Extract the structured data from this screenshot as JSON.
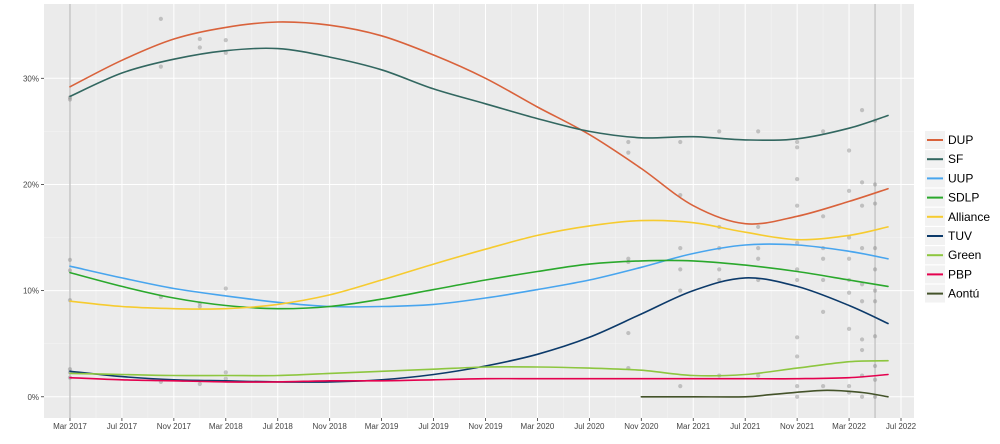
{
  "chart_data": {
    "type": "line",
    "title": "",
    "xlabel": "",
    "ylabel": "",
    "x_ticks": [
      "Mar 2017",
      "Jul 2017",
      "Nov 2017",
      "Mar 2018",
      "Jul 2018",
      "Nov 2018",
      "Mar 2019",
      "Jul 2019",
      "Nov 2019",
      "Mar 2020",
      "Jul 2020",
      "Nov 2020",
      "Mar 2021",
      "Jul 2021",
      "Nov 2021",
      "Mar 2022",
      "Jul 2022"
    ],
    "y_ticks": [
      "0%",
      "10%",
      "20%",
      "30%"
    ],
    "ylim": [
      -2,
      37
    ],
    "xlim": [
      "Jan 2017",
      "Aug 2022"
    ],
    "grid": true,
    "legend_position": "right",
    "election_markers": [
      "Mar 2017",
      "May 2022"
    ],
    "series": [
      {
        "name": "DUP",
        "color": "#d9623b",
        "points": [
          [
            "Mar 2017",
            29.2
          ],
          [
            "Jul 2017",
            31.7
          ],
          [
            "Nov 2017",
            33.7
          ],
          [
            "Mar 2018",
            34.8
          ],
          [
            "Jul 2018",
            35.3
          ],
          [
            "Nov 2018",
            35.0
          ],
          [
            "Mar 2019",
            34.0
          ],
          [
            "Jul 2019",
            32.2
          ],
          [
            "Nov 2019",
            30.0
          ],
          [
            "Mar 2020",
            27.3
          ],
          [
            "Jul 2020",
            24.7
          ],
          [
            "Nov 2020",
            21.5
          ],
          [
            "Mar 2021",
            18.0
          ],
          [
            "Jul 2021",
            16.3
          ],
          [
            "Nov 2021",
            17.0
          ],
          [
            "Mar 2022",
            18.4
          ],
          [
            "Jun 2022",
            19.6
          ]
        ]
      },
      {
        "name": "SF",
        "color": "#326760",
        "points": [
          [
            "Mar 2017",
            28.3
          ],
          [
            "Jul 2017",
            30.5
          ],
          [
            "Nov 2017",
            31.8
          ],
          [
            "Mar 2018",
            32.6
          ],
          [
            "Jul 2018",
            32.8
          ],
          [
            "Nov 2018",
            32.0
          ],
          [
            "Mar 2019",
            30.8
          ],
          [
            "Jul 2019",
            29.0
          ],
          [
            "Nov 2019",
            27.6
          ],
          [
            "Mar 2020",
            26.2
          ],
          [
            "Jul 2020",
            25.0
          ],
          [
            "Nov 2020",
            24.4
          ],
          [
            "Mar 2021",
            24.5
          ],
          [
            "Jul 2021",
            24.2
          ],
          [
            "Nov 2021",
            24.3
          ],
          [
            "Mar 2022",
            25.3
          ],
          [
            "Jun 2022",
            26.5
          ]
        ]
      },
      {
        "name": "UUP",
        "color": "#48a5ee",
        "points": [
          [
            "Mar 2017",
            12.3
          ],
          [
            "Jul 2017",
            11.2
          ],
          [
            "Nov 2017",
            10.2
          ],
          [
            "Mar 2018",
            9.5
          ],
          [
            "Jul 2018",
            8.9
          ],
          [
            "Nov 2018",
            8.5
          ],
          [
            "Mar 2019",
            8.5
          ],
          [
            "Jul 2019",
            8.7
          ],
          [
            "Nov 2019",
            9.3
          ],
          [
            "Mar 2020",
            10.1
          ],
          [
            "Jul 2020",
            11.0
          ],
          [
            "Nov 2020",
            12.2
          ],
          [
            "Mar 2021",
            13.5
          ],
          [
            "Jul 2021",
            14.3
          ],
          [
            "Nov 2021",
            14.3
          ],
          [
            "Mar 2022",
            13.7
          ],
          [
            "Jun 2022",
            13.0
          ]
        ]
      },
      {
        "name": "SDLP",
        "color": "#2aa82c",
        "points": [
          [
            "Mar 2017",
            11.7
          ],
          [
            "Jul 2017",
            10.4
          ],
          [
            "Nov 2017",
            9.3
          ],
          [
            "Mar 2018",
            8.6
          ],
          [
            "Jul 2018",
            8.3
          ],
          [
            "Nov 2018",
            8.5
          ],
          [
            "Mar 2019",
            9.2
          ],
          [
            "Jul 2019",
            10.1
          ],
          [
            "Nov 2019",
            11.0
          ],
          [
            "Mar 2020",
            11.8
          ],
          [
            "Jul 2020",
            12.5
          ],
          [
            "Nov 2020",
            12.8
          ],
          [
            "Mar 2021",
            12.8
          ],
          [
            "Jul 2021",
            12.4
          ],
          [
            "Nov 2021",
            11.8
          ],
          [
            "Mar 2022",
            11.0
          ],
          [
            "Jun 2022",
            10.4
          ]
        ]
      },
      {
        "name": "Alliance",
        "color": "#f6cb2f",
        "points": [
          [
            "Mar 2017",
            9.0
          ],
          [
            "Jul 2017",
            8.5
          ],
          [
            "Nov 2017",
            8.3
          ],
          [
            "Mar 2018",
            8.3
          ],
          [
            "Jul 2018",
            8.7
          ],
          [
            "Nov 2018",
            9.6
          ],
          [
            "Mar 2019",
            11.0
          ],
          [
            "Jul 2019",
            12.5
          ],
          [
            "Nov 2019",
            13.9
          ],
          [
            "Mar 2020",
            15.2
          ],
          [
            "Jul 2020",
            16.1
          ],
          [
            "Nov 2020",
            16.6
          ],
          [
            "Mar 2021",
            16.4
          ],
          [
            "Jul 2021",
            15.5
          ],
          [
            "Nov 2021",
            14.8
          ],
          [
            "Mar 2022",
            15.2
          ],
          [
            "Jun 2022",
            16.0
          ]
        ]
      },
      {
        "name": "TUV",
        "color": "#0c3a6a",
        "points": [
          [
            "Mar 2017",
            2.4
          ],
          [
            "Jul 2017",
            1.9
          ],
          [
            "Nov 2017",
            1.6
          ],
          [
            "Mar 2018",
            1.5
          ],
          [
            "Jul 2018",
            1.4
          ],
          [
            "Nov 2018",
            1.4
          ],
          [
            "Mar 2019",
            1.6
          ],
          [
            "Jul 2019",
            2.1
          ],
          [
            "Nov 2019",
            2.9
          ],
          [
            "Mar 2020",
            4.0
          ],
          [
            "Jul 2020",
            5.6
          ],
          [
            "Nov 2020",
            7.8
          ],
          [
            "Mar 2021",
            10.0
          ],
          [
            "Jul 2021",
            11.2
          ],
          [
            "Nov 2021",
            10.4
          ],
          [
            "Mar 2022",
            8.6
          ],
          [
            "Jun 2022",
            6.9
          ]
        ]
      },
      {
        "name": "Green",
        "color": "#8dc63f",
        "points": [
          [
            "Mar 2017",
            2.2
          ],
          [
            "Jul 2017",
            2.1
          ],
          [
            "Nov 2017",
            2.0
          ],
          [
            "Mar 2018",
            2.0
          ],
          [
            "Jul 2018",
            2.0
          ],
          [
            "Nov 2018",
            2.2
          ],
          [
            "Mar 2019",
            2.4
          ],
          [
            "Jul 2019",
            2.6
          ],
          [
            "Nov 2019",
            2.8
          ],
          [
            "Mar 2020",
            2.8
          ],
          [
            "Jul 2020",
            2.7
          ],
          [
            "Nov 2020",
            2.5
          ],
          [
            "Mar 2021",
            2.0
          ],
          [
            "Jul 2021",
            2.1
          ],
          [
            "Nov 2021",
            2.7
          ],
          [
            "Mar 2022",
            3.3
          ],
          [
            "Jun 2022",
            3.4
          ]
        ]
      },
      {
        "name": "PBP",
        "color": "#e4014e",
        "points": [
          [
            "Mar 2017",
            1.8
          ],
          [
            "Jul 2017",
            1.6
          ],
          [
            "Nov 2017",
            1.5
          ],
          [
            "Mar 2018",
            1.4
          ],
          [
            "Jul 2018",
            1.4
          ],
          [
            "Nov 2018",
            1.5
          ],
          [
            "Mar 2019",
            1.5
          ],
          [
            "Jul 2019",
            1.6
          ],
          [
            "Nov 2019",
            1.7
          ],
          [
            "Mar 2020",
            1.7
          ],
          [
            "Jul 2020",
            1.7
          ],
          [
            "Nov 2020",
            1.7
          ],
          [
            "Mar 2021",
            1.7
          ],
          [
            "Jul 2021",
            1.7
          ],
          [
            "Nov 2021",
            1.7
          ],
          [
            "Mar 2022",
            1.8
          ],
          [
            "Jun 2022",
            2.1
          ]
        ]
      },
      {
        "name": "Aontú",
        "color": "#44532a",
        "points": [
          [
            "Nov 2020",
            0.0
          ],
          [
            "Mar 2021",
            0.0
          ],
          [
            "Jul 2021",
            0.0
          ],
          [
            "Sep 2021",
            0.2
          ],
          [
            "Jan 2022",
            0.6
          ],
          [
            "Apr 2022",
            0.4
          ],
          [
            "Jun 2022",
            0.0
          ]
        ]
      }
    ],
    "poll_points": [
      [
        "Mar 2017",
        28
      ],
      [
        "Mar 2017",
        28.2
      ],
      [
        "Mar 2017",
        12.9
      ],
      [
        "Mar 2017",
        11.9
      ],
      [
        "Mar 2017",
        9.1
      ],
      [
        "Mar 2017",
        2.6
      ],
      [
        "Mar 2017",
        2.3
      ],
      [
        "Mar 2017",
        1.8
      ],
      [
        "Oct 2017",
        35.6
      ],
      [
        "Oct 2017",
        31.1
      ],
      [
        "Oct 2017",
        9.4
      ],
      [
        "Oct 2017",
        1.4
      ],
      [
        "Jan 2018",
        33.7
      ],
      [
        "Jan 2018",
        32.9
      ],
      [
        "Jan 2018",
        8.8
      ],
      [
        "Jan 2018",
        8.5
      ],
      [
        "Jan 2018",
        1.2
      ],
      [
        "Mar 2018",
        33.6
      ],
      [
        "Mar 2018",
        32.4
      ],
      [
        "Mar 2018",
        10.2
      ],
      [
        "Mar 2018",
        2.3
      ],
      [
        "Mar 2018",
        1.7
      ],
      [
        "Oct 2020",
        24.0
      ],
      [
        "Oct 2020",
        23.0
      ],
      [
        "Oct 2020",
        13.0
      ],
      [
        "Oct 2020",
        12.7
      ],
      [
        "Oct 2020",
        6.0
      ],
      [
        "Oct 2020",
        2.7
      ],
      [
        "Feb 2021",
        24.0
      ],
      [
        "Feb 2021",
        19.0
      ],
      [
        "Feb 2021",
        14.0
      ],
      [
        "Feb 2021",
        12.0
      ],
      [
        "Feb 2021",
        10.0
      ],
      [
        "Feb 2021",
        1.0
      ],
      [
        "May 2021",
        25.0
      ],
      [
        "May 2021",
        16.0
      ],
      [
        "May 2021",
        14.0
      ],
      [
        "May 2021",
        12.0
      ],
      [
        "May 2021",
        11.0
      ],
      [
        "May 2021",
        2.0
      ],
      [
        "Aug 2021",
        25.0
      ],
      [
        "Aug 2021",
        16.0
      ],
      [
        "Aug 2021",
        14.0
      ],
      [
        "Aug 2021",
        13.0
      ],
      [
        "Aug 2021",
        11.0
      ],
      [
        "Aug 2021",
        2.0
      ],
      [
        "Nov 2021",
        24.0
      ],
      [
        "Nov 2021",
        23.5
      ],
      [
        "Nov 2021",
        20.5
      ],
      [
        "Nov 2021",
        18.0
      ],
      [
        "Nov 2021",
        14.5
      ],
      [
        "Nov 2021",
        12.0
      ],
      [
        "Nov 2021",
        11.0
      ],
      [
        "Nov 2021",
        5.6
      ],
      [
        "Nov 2021",
        3.8
      ],
      [
        "Nov 2021",
        1.0
      ],
      [
        "Nov 2021",
        0.0
      ],
      [
        "Jan 2022",
        25.0
      ],
      [
        "Jan 2022",
        17.0
      ],
      [
        "Jan 2022",
        14.0
      ],
      [
        "Jan 2022",
        13.0
      ],
      [
        "Jan 2022",
        11.0
      ],
      [
        "Jan 2022",
        8.0
      ],
      [
        "Jan 2022",
        1.0
      ],
      [
        "Mar 2022",
        23.2
      ],
      [
        "Mar 2022",
        19.4
      ],
      [
        "Mar 2022",
        15.0
      ],
      [
        "Mar 2022",
        13.0
      ],
      [
        "Mar 2022",
        11.0
      ],
      [
        "Mar 2022",
        9.8
      ],
      [
        "Mar 2022",
        6.4
      ],
      [
        "Mar 2022",
        1.0
      ],
      [
        "Mar 2022",
        0.4
      ],
      [
        "Apr 2022",
        27.0
      ],
      [
        "Apr 2022",
        20.2
      ],
      [
        "Apr 2022",
        18.0
      ],
      [
        "Apr 2022",
        14.0
      ],
      [
        "Apr 2022",
        10.6
      ],
      [
        "Apr 2022",
        9.0
      ],
      [
        "Apr 2022",
        5.4
      ],
      [
        "Apr 2022",
        4.4
      ],
      [
        "Apr 2022",
        2.0
      ],
      [
        "Apr 2022",
        0.0
      ],
      [
        "May 2022",
        26.0
      ],
      [
        "May 2022",
        20.0
      ],
      [
        "May 2022",
        18.2
      ],
      [
        "May 2022",
        14.0
      ],
      [
        "May 2022",
        12.0
      ],
      [
        "May 2022",
        10.0
      ],
      [
        "May 2022",
        9.0
      ],
      [
        "May 2022",
        5.7
      ],
      [
        "May 2022",
        2.9
      ],
      [
        "May 2022",
        1.6
      ],
      [
        "May 2022",
        0.0
      ]
    ]
  }
}
